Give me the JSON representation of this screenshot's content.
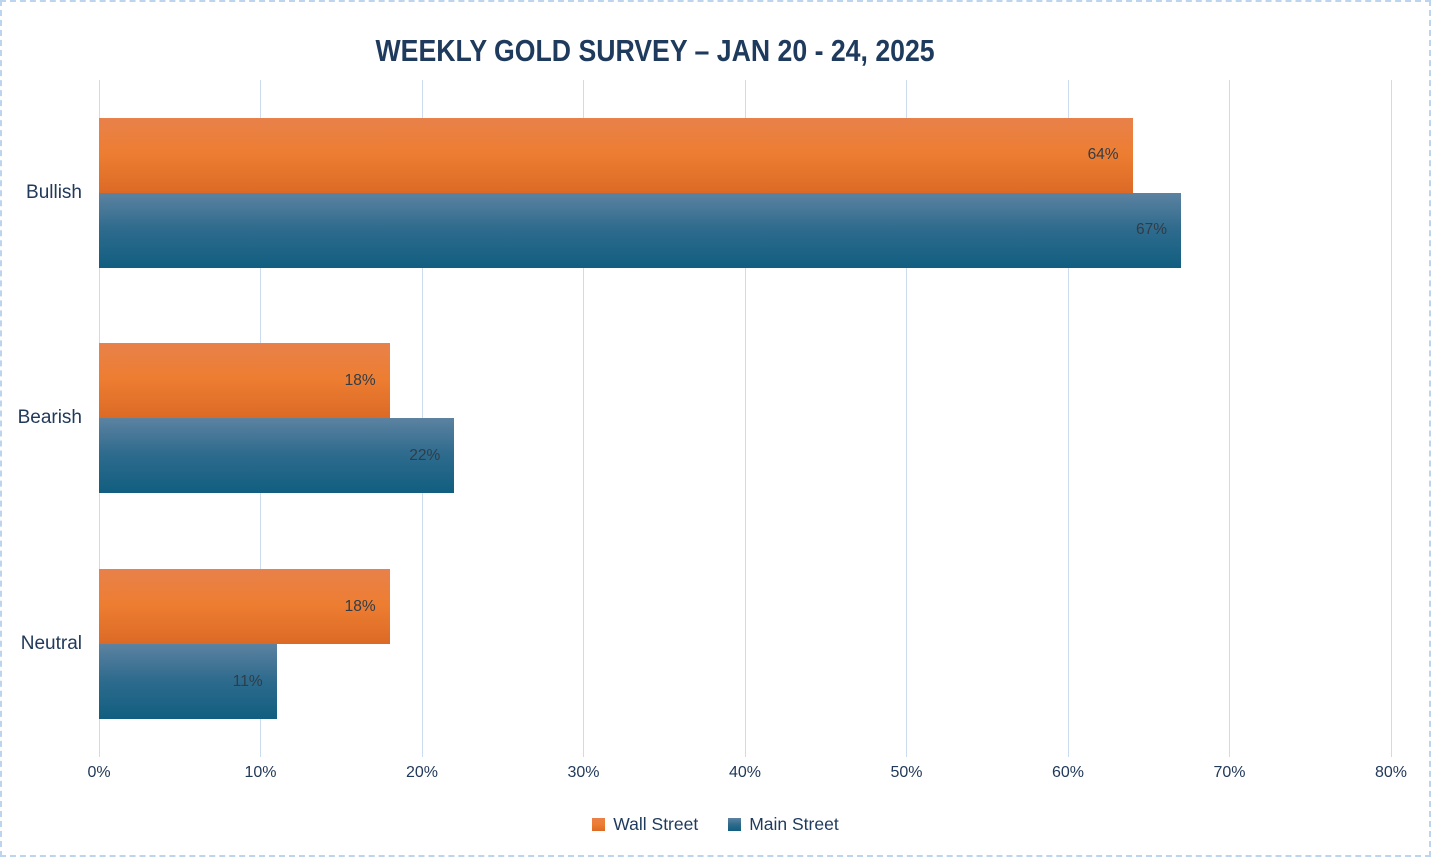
{
  "chart_data": {
    "type": "bar",
    "orientation": "horizontal",
    "title": "WEEKLY GOLD SURVEY – JAN 20 - 24, 2025",
    "categories": [
      "Bullish",
      "Bearish",
      "Neutral"
    ],
    "series": [
      {
        "name": "Wall Street",
        "color": "#ED7D31",
        "gradient_top": "#E8814A",
        "gradient_mid": "#ED7D31",
        "gradient_bottom": "#DC6A26",
        "values": [
          64,
          18,
          18
        ]
      },
      {
        "name": "Main Street",
        "color": "#156082",
        "gradient_top": "#5D82A1",
        "gradient_mid": "#2E6B8D",
        "gradient_bottom": "#115E80",
        "values": [
          67,
          22,
          11
        ]
      }
    ],
    "data_labels": [
      "64%",
      "67%",
      "18%",
      "22%",
      "18%",
      "11%"
    ],
    "value_suffix": "%",
    "xlim": [
      0,
      80
    ],
    "x_ticks": [
      "0%",
      "10%",
      "20%",
      "30%",
      "40%",
      "50%",
      "60%",
      "70%",
      "80%"
    ],
    "grid": "vertical-only",
    "gridline_color": "#CCDCEF",
    "legend_position": "bottom-center",
    "label_color": "#1E3A5C",
    "border_color": "#BCD4EE"
  }
}
